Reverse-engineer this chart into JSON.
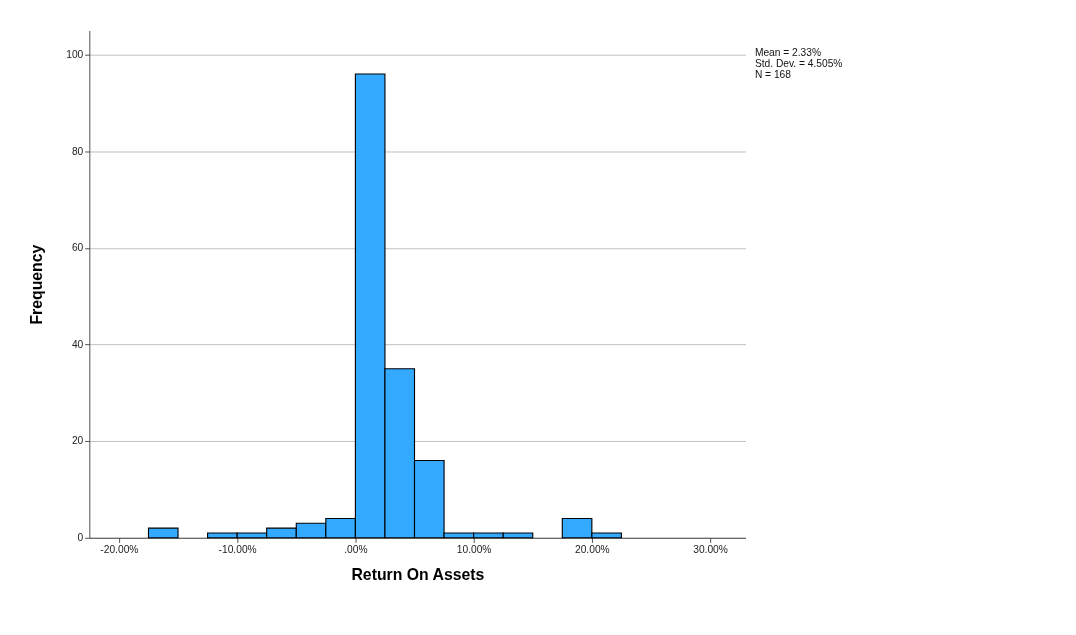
{
  "chart_data": {
    "type": "histogram",
    "xlabel": "Return On Assets",
    "ylabel": "Frequency",
    "bins": [
      -17.5,
      -15,
      -12.5,
      -10,
      -7.5,
      -5,
      -2.5,
      0,
      2.5,
      5,
      7.5,
      10,
      12.5,
      15,
      17.5,
      20,
      22.5
    ],
    "values": [
      2,
      0,
      1,
      1,
      2,
      3,
      4,
      96,
      35,
      16,
      1,
      1,
      1,
      0,
      4,
      1
    ],
    "color": "#33aaff",
    "xlim": [
      -22.5,
      33
    ],
    "ylim": [
      0,
      105
    ],
    "xticks": [
      {
        "value": -20,
        "label": "-20.00%"
      },
      {
        "value": -10,
        "label": "-10.00%"
      },
      {
        "value": 0,
        "label": ".00%"
      },
      {
        "value": 10,
        "label": "10.00%"
      },
      {
        "value": 20,
        "label": "20.00%"
      },
      {
        "value": 30,
        "label": "30.00%"
      }
    ],
    "yticks": [
      0,
      20,
      40,
      60,
      80,
      100
    ],
    "grid": "y",
    "annotations": [
      "Mean = 2.33%",
      "Std. Dev. = 4.505%",
      "N = 168"
    ]
  }
}
